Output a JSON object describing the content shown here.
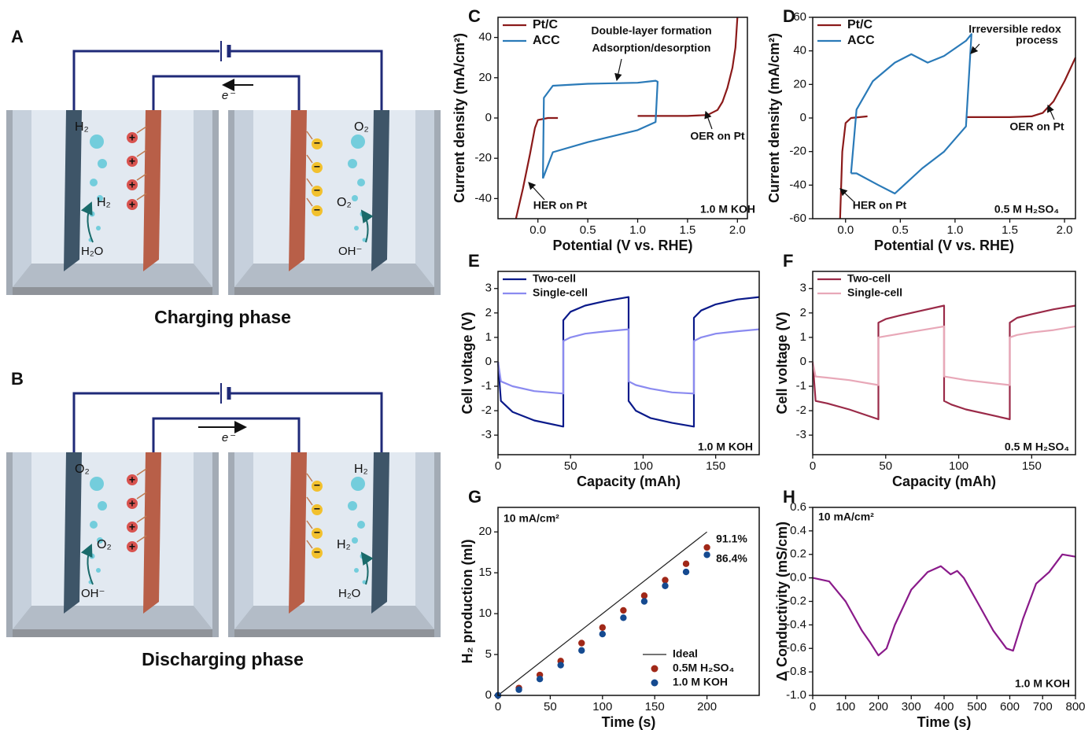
{
  "diagrams": [
    {
      "label": "A",
      "title": "Charging phase",
      "electron": "e⁻",
      "cation": "+",
      "anion": "−",
      "left": {
        "gas_top": "H₂",
        "gas": "H₂",
        "reactant": "H₂O"
      },
      "right": {
        "gas_top": "O₂",
        "gas": "O₂",
        "reactant": "OH⁻"
      }
    },
    {
      "label": "B",
      "title": "Discharging phase",
      "electron": "e⁻",
      "cation": "+",
      "anion": "−",
      "left": {
        "gas_top": "O₂",
        "gas": "O₂",
        "reactant": "OH⁻"
      },
      "right": {
        "gas_top": "H₂",
        "gas": "H₂",
        "reactant": "H₂O"
      }
    }
  ],
  "chart_data": [
    {
      "type": "line",
      "panel": "C",
      "xlabel": "Potential (V vs. RHE)",
      "ylabel": "Current density (mA/cm²)",
      "xlim": [
        -0.4,
        2.1
      ],
      "ylim": [
        -50,
        50
      ],
      "xticks": [
        {
          "value": 0,
          "label": "0.0"
        },
        0.5,
        {
          "value": 1,
          "label": "1.0"
        },
        1.5,
        {
          "value": 2,
          "label": "2.0"
        }
      ],
      "yticks": [
        -40,
        -20,
        0,
        20,
        40
      ],
      "legend": "upper left",
      "series": [
        {
          "name": "Pt/C",
          "color": "#8b1a1a",
          "x": [
            -0.22,
            -0.15,
            -0.08,
            -0.03,
            0.0,
            0.1,
            0.2,
            null,
            1.0,
            1.5,
            1.7,
            1.8,
            1.85,
            1.9,
            1.95,
            1.98,
            2.0
          ],
          "values": [
            -50,
            -35,
            -18,
            -5,
            -1,
            0,
            0,
            null,
            1,
            1,
            1.5,
            4,
            8,
            15,
            25,
            35,
            50
          ]
        },
        {
          "name": "ACC",
          "color": "#2a7ab8",
          "x": [
            0.05,
            0.06,
            0.15,
            0.5,
            1.0,
            1.18,
            1.2,
            1.18,
            1.0,
            0.5,
            0.15,
            0.05
          ],
          "values": [
            -30,
            10,
            16,
            17,
            17.5,
            18.5,
            18,
            -2,
            -6,
            -12,
            -17,
            -30
          ]
        }
      ],
      "annotations": [
        {
          "text": "Double-layer formation"
        },
        {
          "text": "Adsorption/desorption"
        },
        {
          "text": "OER on Pt"
        },
        {
          "text": "HER on Pt"
        },
        {
          "text": "1.0 M KOH"
        }
      ]
    },
    {
      "type": "line",
      "panel": "D",
      "xlabel": "Potential (V vs. RHE)",
      "ylabel": "Current density (mA/cm²)",
      "xlim": [
        -0.3,
        2.1
      ],
      "ylim": [
        -60,
        60
      ],
      "xticks": [
        {
          "value": 0,
          "label": "0.0"
        },
        0.5,
        {
          "value": 1,
          "label": "1.0"
        },
        1.5,
        {
          "value": 2,
          "label": "2.0"
        }
      ],
      "yticks": [
        -60,
        -40,
        -20,
        0,
        20,
        40,
        60
      ],
      "legend": "upper left",
      "series": [
        {
          "name": "Pt/C",
          "color": "#8b1a1a",
          "x": [
            -0.05,
            -0.03,
            0.0,
            0.05,
            0.2,
            null,
            1.1,
            1.5,
            1.7,
            1.8,
            1.9,
            2.0,
            2.1
          ],
          "values": [
            -60,
            -20,
            -3,
            0,
            1,
            null,
            0.5,
            0.5,
            1,
            3,
            10,
            22,
            36
          ]
        },
        {
          "name": "ACC",
          "color": "#2a7ab8",
          "x": [
            0.05,
            0.1,
            0.25,
            0.45,
            0.6,
            0.75,
            0.9,
            1.1,
            1.15,
            1.1,
            0.9,
            0.7,
            0.45,
            0.3,
            0.1,
            0.05
          ],
          "values": [
            -33,
            5,
            22,
            33,
            38,
            33,
            37,
            46,
            50,
            -5,
            -20,
            -30,
            -45,
            -40,
            -33,
            -33
          ]
        }
      ],
      "annotations": [
        {
          "text": "Irreversible redox"
        },
        {
          "text": "process"
        },
        {
          "text": "OER on Pt"
        },
        {
          "text": "HER on Pt"
        },
        {
          "text": "0.5 M H₂SO₄"
        }
      ]
    },
    {
      "type": "line",
      "panel": "E",
      "xlabel": "Capacity (mAh)",
      "ylabel": "Cell voltage (V)",
      "xlim": [
        0,
        180
      ],
      "ylim": [
        -3.8,
        3.7
      ],
      "xticks": [
        0,
        50,
        100,
        150
      ],
      "yticks": [
        -3,
        -2,
        -1,
        0,
        1,
        2,
        3
      ],
      "legend": "upper left",
      "series": [
        {
          "name": "Two-cell",
          "color": "#0a1a8a",
          "x": [
            0,
            2,
            10,
            25,
            45,
            45,
            50,
            60,
            75,
            90,
            90,
            95,
            105,
            120,
            135,
            135,
            140,
            150,
            165,
            180
          ],
          "values": [
            0,
            -1.6,
            -2.05,
            -2.4,
            -2.65,
            1.7,
            2.05,
            2.3,
            2.5,
            2.65,
            -1.6,
            -2.0,
            -2.3,
            -2.5,
            -2.65,
            1.8,
            2.1,
            2.35,
            2.55,
            2.65
          ]
        },
        {
          "name": "Single-cell",
          "color": "#8a8af0",
          "x": [
            0,
            2,
            10,
            25,
            45,
            45,
            50,
            60,
            75,
            90,
            90,
            95,
            105,
            120,
            135,
            135,
            140,
            150,
            165,
            180
          ],
          "values": [
            0,
            -0.8,
            -1.0,
            -1.2,
            -1.3,
            0.85,
            1.0,
            1.15,
            1.25,
            1.33,
            -0.8,
            -0.95,
            -1.1,
            -1.25,
            -1.3,
            0.85,
            1.0,
            1.15,
            1.25,
            1.33
          ]
        }
      ],
      "annotations": [
        {
          "text": "1.0 M KOH"
        }
      ]
    },
    {
      "type": "line",
      "panel": "F",
      "xlabel": "Capacity (mAh)",
      "ylabel": "Cell voltage (V)",
      "xlim": [
        0,
        180
      ],
      "ylim": [
        -3.8,
        3.7
      ],
      "xticks": [
        0,
        50,
        100,
        150
      ],
      "yticks": [
        -3,
        -2,
        -1,
        0,
        1,
        2,
        3
      ],
      "legend": "upper left",
      "series": [
        {
          "name": "Two-cell",
          "color": "#9a2a48",
          "x": [
            0,
            2,
            10,
            25,
            45,
            45,
            50,
            60,
            75,
            90,
            90,
            95,
            105,
            120,
            135,
            135,
            140,
            150,
            165,
            180
          ],
          "values": [
            0,
            -1.6,
            -1.7,
            -1.95,
            -2.35,
            1.6,
            1.75,
            1.9,
            2.1,
            2.3,
            -1.6,
            -1.75,
            -1.95,
            -2.15,
            -2.35,
            1.6,
            1.8,
            1.95,
            2.15,
            2.3
          ]
        },
        {
          "name": "Single-cell",
          "color": "#e8a8b8",
          "x": [
            0,
            2,
            10,
            25,
            45,
            45,
            50,
            60,
            75,
            90,
            90,
            95,
            105,
            120,
            135,
            135,
            140,
            150,
            165,
            180
          ],
          "values": [
            0,
            -0.6,
            -0.65,
            -0.75,
            -0.95,
            1.0,
            1.05,
            1.15,
            1.3,
            1.45,
            -0.6,
            -0.65,
            -0.75,
            -0.85,
            -0.95,
            1.0,
            1.1,
            1.2,
            1.3,
            1.45
          ]
        }
      ],
      "annotations": [
        {
          "text": "0.5 M H₂SO₄"
        }
      ]
    },
    {
      "type": "scatter",
      "panel": "G",
      "xlabel": "Time (s)",
      "ylabel": "H₂ production (ml)",
      "xlim": [
        0,
        250
      ],
      "ylim": [
        0,
        23
      ],
      "xticks": [
        0,
        50,
        100,
        150,
        200
      ],
      "yticks": [
        0,
        5,
        10,
        15,
        20
      ],
      "legend": "lower right",
      "series": [
        {
          "name": "Ideal",
          "type": "line",
          "color": "#222222",
          "x": [
            0,
            200
          ],
          "values": [
            0,
            20
          ]
        },
        {
          "name": "0.5M H₂SO₄",
          "color": "#a02818",
          "x": [
            0,
            20,
            40,
            60,
            80,
            100,
            120,
            140,
            160,
            180,
            200
          ],
          "values": [
            0,
            0.9,
            2.5,
            4.2,
            6.4,
            8.3,
            10.4,
            12.2,
            14.1,
            16.1,
            18.1
          ]
        },
        {
          "name": "1.0 M KOH",
          "color": "#154a90",
          "x": [
            0,
            20,
            40,
            60,
            80,
            100,
            120,
            140,
            160,
            180,
            200
          ],
          "values": [
            0,
            0.7,
            2,
            3.7,
            5.5,
            7.5,
            9.5,
            11.5,
            13.4,
            15.1,
            17.2
          ]
        }
      ],
      "annotations": [
        {
          "text": "10 mA/cm²"
        },
        {
          "text": "91.1%",
          "color": "#a02818"
        },
        {
          "text": "86.4%",
          "color": "#154a90"
        }
      ]
    },
    {
      "type": "line",
      "panel": "H",
      "xlabel": "Time (s)",
      "ylabel": "Δ Conductivity (mS/cm)",
      "xlim": [
        0,
        800
      ],
      "ylim": [
        -1,
        0.6
      ],
      "xticks": [
        0,
        100,
        200,
        300,
        400,
        500,
        600,
        700,
        800
      ],
      "yticks": [
        {
          "value": -1,
          "label": "-1.0"
        },
        -0.8,
        -0.6,
        -0.4,
        -0.2,
        {
          "value": 0,
          "label": "0.0"
        },
        0.2,
        0.4,
        0.6
      ],
      "series": [
        {
          "color": "#8a1a8a",
          "x": [
            0,
            50,
            100,
            150,
            175,
            200,
            225,
            250,
            300,
            350,
            390,
            420,
            440,
            460,
            500,
            550,
            590,
            610,
            640,
            680,
            720,
            760,
            800
          ],
          "values": [
            0,
            -0.03,
            -0.2,
            -0.45,
            -0.55,
            -0.66,
            -0.6,
            -0.4,
            -0.1,
            0.05,
            0.1,
            0.03,
            0.06,
            0,
            -0.2,
            -0.45,
            -0.6,
            -0.62,
            -0.35,
            -0.05,
            0.05,
            0.2,
            0.18
          ]
        }
      ],
      "annotations": [
        {
          "text": "10 mA/cm²"
        },
        {
          "text": "1.0 M KOH"
        }
      ]
    }
  ]
}
